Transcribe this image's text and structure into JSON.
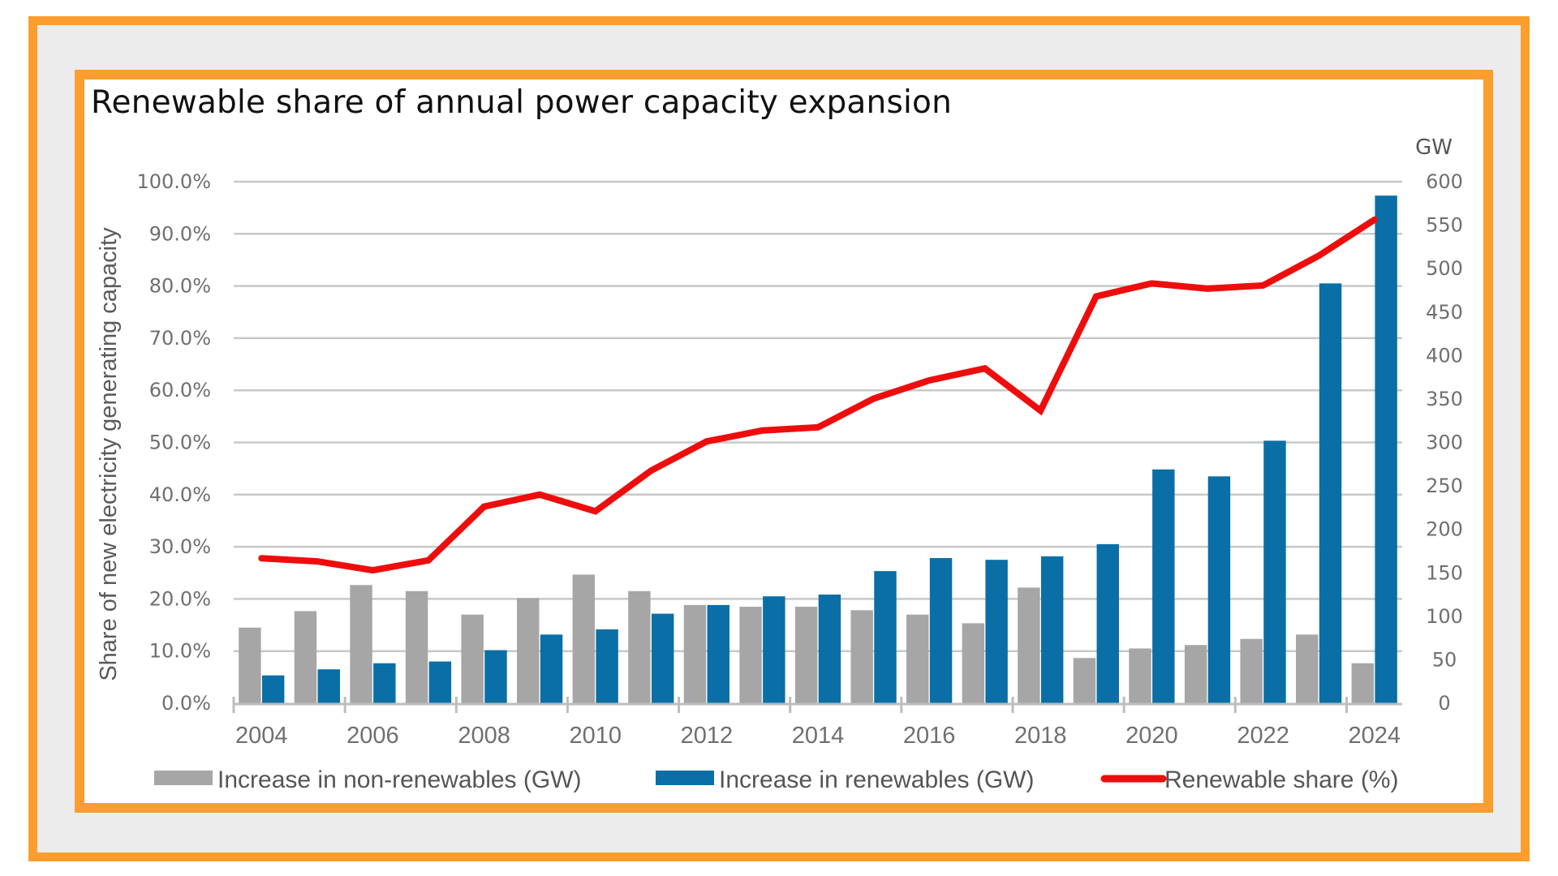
{
  "chart_data": {
    "type": "bar",
    "title": "Renewable share of annual power capacity expansion",
    "xlabel": "",
    "ylabel": "Share of new electricity generating capacity",
    "y2label": "GW",
    "categories": [
      "2004",
      "2005",
      "2006",
      "2007",
      "2008",
      "2009",
      "2010",
      "2011",
      "2012",
      "2013",
      "2014",
      "2015",
      "2016",
      "2017",
      "2018",
      "2019",
      "2020",
      "2021",
      "2022",
      "2023",
      "2024"
    ],
    "x_tick_labels": [
      "2004",
      "2006",
      "2008",
      "2010",
      "2012",
      "2014",
      "2016",
      "2018",
      "2020",
      "2022",
      "2024"
    ],
    "ylim": [
      0,
      100
    ],
    "y_ticks": [
      "0.0%",
      "10.0%",
      "20.0%",
      "30.0%",
      "40.0%",
      "50.0%",
      "60.0%",
      "70.0%",
      "80.0%",
      "90.0%",
      "100.0%"
    ],
    "y2lim": [
      0,
      600
    ],
    "y2_ticks": [
      "0",
      "50",
      "100",
      "150",
      "200",
      "250",
      "300",
      "350",
      "400",
      "450",
      "500",
      "550",
      "600"
    ],
    "grid": true,
    "legend_position": "bottom",
    "series": [
      {
        "name": "Increase in non-renewables (GW)",
        "type": "bar",
        "axis": "right",
        "color": "#a6a6a6",
        "values": [
          87,
          106,
          136,
          129,
          102,
          121,
          148,
          129,
          113,
          111,
          111,
          107,
          102,
          92,
          133,
          52,
          63,
          67,
          74,
          79,
          46
        ]
      },
      {
        "name": "Increase in renewables (GW)",
        "type": "bar",
        "axis": "right",
        "color": "#0a6fa6",
        "values": [
          32,
          39,
          46,
          48,
          61,
          79,
          85,
          103,
          113,
          123,
          125,
          152,
          167,
          165,
          169,
          183,
          269,
          261,
          302,
          483,
          584
        ]
      },
      {
        "name": "Renewable share (%)",
        "type": "line",
        "axis": "left",
        "color": "#ee0d0d",
        "values": [
          27.8,
          27.2,
          25.5,
          27.4,
          37.7,
          40.0,
          36.8,
          44.6,
          50.2,
          52.3,
          52.9,
          58.4,
          61.9,
          64.2,
          56.1,
          78.0,
          80.5,
          79.5,
          80.1,
          85.8,
          92.7
        ]
      }
    ]
  },
  "colors": {
    "frame": "#fb9e2d",
    "frame_background": "#ececec",
    "gridline": "#c8c8c8"
  }
}
